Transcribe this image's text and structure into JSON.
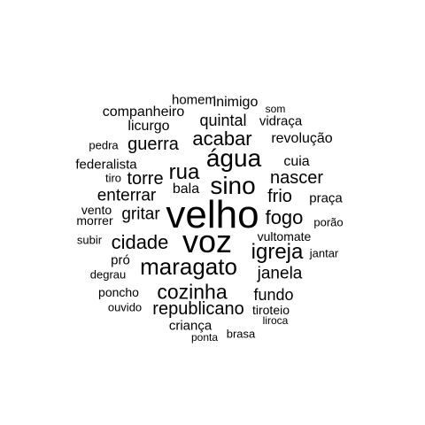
{
  "background": "#ffffff",
  "text_color": "#000000",
  "words": {
    "homem": "homem",
    "inimigo": "inimigo",
    "som": "som",
    "companheiro": "companheiro",
    "quintal": "quintal",
    "vidraca": "vidraça",
    "licurgo": "licurgo",
    "acabar": "acabar",
    "revolucao": "revolução",
    "pedra": "pedra",
    "guerra": "guerra",
    "agua": "água",
    "cuia": "cuia",
    "federalista": "federalista",
    "rua": "rua",
    "nascer": "nascer",
    "tiro": "tiro",
    "torre": "torre",
    "sino": "sino",
    "bala": "bala",
    "frio": "frio",
    "praca": "praça",
    "enterrar": "enterrar",
    "vento": "vento",
    "velho": "velho",
    "fogo": "fogo",
    "gritar": "gritar",
    "morrer": "morrer",
    "porao": "porão",
    "vultomate": "vultomate",
    "voz": "voz",
    "cidade": "cidade",
    "subir": "subir",
    "igreja": "igreja",
    "jantar": "jantar",
    "pro": "pró",
    "maragato": "maragato",
    "degrau": "degrau",
    "janela": "janela",
    "cozinha": "cozinha",
    "poncho": "poncho",
    "fundo": "fundo",
    "ouvido": "ouvido",
    "republicano": "republicano",
    "tiroteio": "tiroteio",
    "liroca": "liroca",
    "crianca": "criança",
    "ponta": "ponta",
    "brasa": "brasa"
  }
}
